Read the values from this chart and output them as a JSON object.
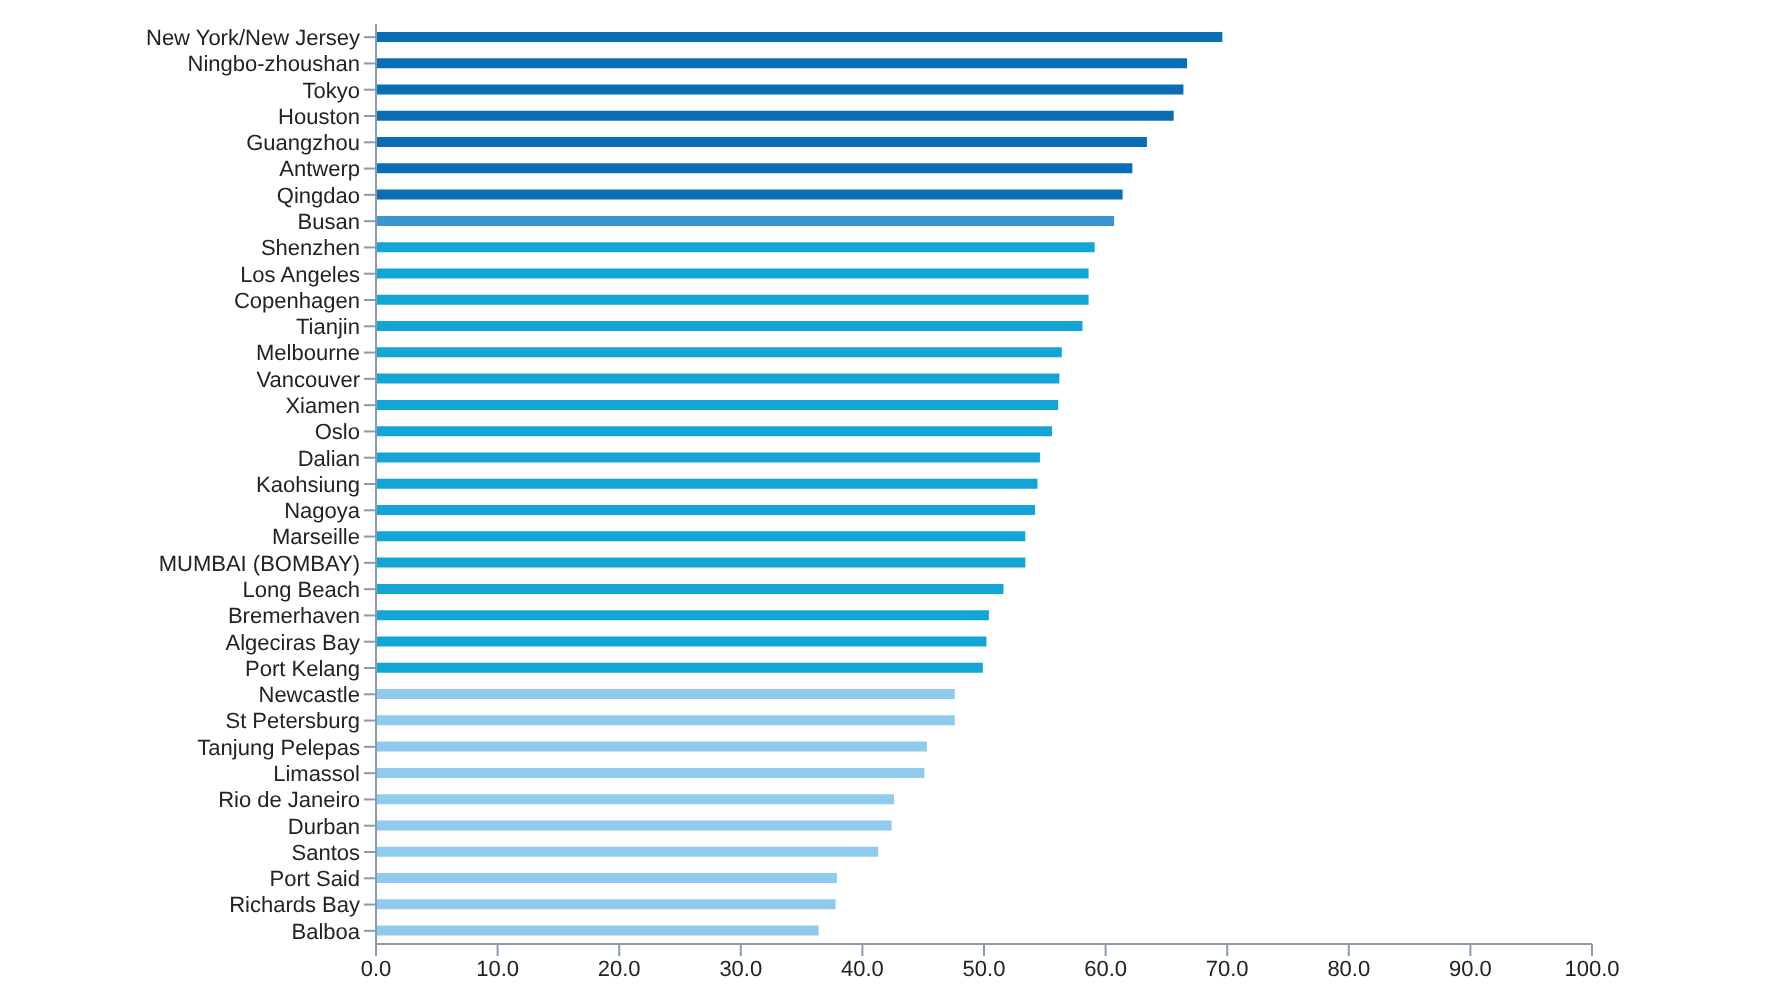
{
  "chart_data": {
    "type": "bar",
    "orientation": "horizontal",
    "categories": [
      "New York/New Jersey",
      "Ningbo-zhoushan",
      "Tokyo",
      "Houston",
      "Guangzhou",
      "Antwerp",
      "Qingdao",
      "Busan",
      "Shenzhen",
      "Los Angeles",
      "Copenhagen",
      "Tianjin",
      "Melbourne",
      "Vancouver",
      "Xiamen",
      "Oslo",
      "Dalian",
      "Kaohsiung",
      "Nagoya",
      "Marseille",
      "MUMBAI (BOMBAY)",
      "Long Beach",
      "Bremerhaven",
      "Algeciras Bay",
      "Port Kelang",
      "Newcastle",
      "St Petersburg",
      "Tanjung Pelepas",
      "Limassol",
      "Rio de Janeiro",
      "Durban",
      "Santos",
      "Port Said",
      "Richards Bay",
      "Balboa"
    ],
    "values": [
      69.6,
      66.7,
      66.4,
      65.6,
      63.4,
      62.2,
      61.4,
      60.7,
      59.1,
      58.6,
      58.6,
      58.1,
      56.4,
      56.2,
      56.1,
      55.6,
      54.6,
      54.4,
      54.2,
      53.4,
      53.4,
      51.6,
      50.4,
      50.2,
      49.9,
      47.6,
      47.6,
      45.3,
      45.1,
      42.6,
      42.4,
      41.3,
      37.9,
      37.8,
      36.4
    ],
    "colors": [
      "#0a6eb4",
      "#0a6eb4",
      "#0a6eb4",
      "#0a6eb4",
      "#0a6eb4",
      "#0a6eb4",
      "#0a6eb4",
      "#3a95d0",
      "#13a5d6",
      "#13a5d6",
      "#13a5d6",
      "#13a5d6",
      "#13a5d6",
      "#13a5d6",
      "#13a5d6",
      "#13a5d6",
      "#13a5d6",
      "#13a5d6",
      "#13a5d6",
      "#13a5d6",
      "#13a5d6",
      "#13a5d6",
      "#13a5d6",
      "#13a5d6",
      "#13a5d6",
      "#8ecbed",
      "#8ecbed",
      "#8ecbed",
      "#8ecbed",
      "#8ecbed",
      "#8ecbed",
      "#8ecbed",
      "#8ecbed",
      "#8ecbed",
      "#8ecbed"
    ],
    "xlim": [
      0,
      100
    ],
    "xticks": [
      {
        "value": 0,
        "label": "0.0"
      },
      {
        "value": 10,
        "label": "10.0"
      },
      {
        "value": 20,
        "label": "20.0"
      },
      {
        "value": 30,
        "label": "30.0"
      },
      {
        "value": 40,
        "label": "40.0"
      },
      {
        "value": 50,
        "label": "50.0"
      },
      {
        "value": 60,
        "label": "60.0"
      },
      {
        "value": 70,
        "label": "70.0"
      },
      {
        "value": 80,
        "label": "80.0"
      },
      {
        "value": 90,
        "label": "90.0"
      },
      {
        "value": 100,
        "label": "100.0"
      }
    ],
    "grid": false
  }
}
